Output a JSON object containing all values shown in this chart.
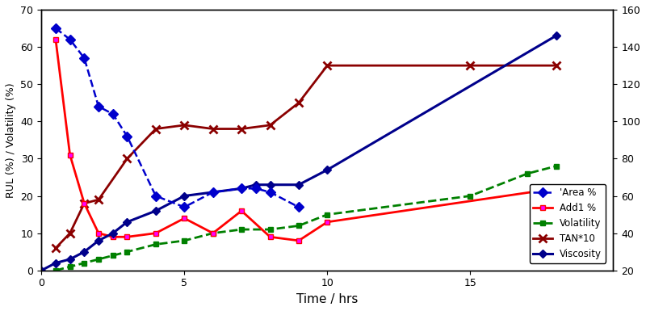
{
  "title": "",
  "xlabel": "Time / hrs",
  "ylabel_left": "RUL (%) / Volatility (%)",
  "ylabel_right": "",
  "xlim": [
    0,
    20
  ],
  "ylim_left": [
    0,
    70
  ],
  "ylim_right": [
    20,
    160
  ],
  "xticks": [
    0,
    5,
    10,
    15
  ],
  "yticks_left": [
    0,
    10,
    20,
    30,
    40,
    50,
    60,
    70
  ],
  "yticks_right": [
    20,
    40,
    60,
    80,
    100,
    120,
    140,
    160
  ],
  "area_x": [
    0.5,
    1,
    1.5,
    2,
    2.5,
    3,
    4,
    5,
    6,
    7,
    7.5,
    8,
    9
  ],
  "area_y": [
    65,
    62,
    57,
    44,
    42,
    36,
    20,
    17,
    21,
    22,
    22,
    21,
    17
  ],
  "add1_x": [
    0.5,
    1,
    1.5,
    2,
    2.5,
    3,
    4,
    5,
    6,
    7,
    8,
    9,
    10,
    18
  ],
  "add1_y": [
    62,
    31,
    18,
    10,
    9,
    9,
    10,
    14,
    10,
    16,
    9,
    8,
    13,
    22
  ],
  "volatility_x": [
    0.5,
    1,
    1.5,
    2,
    2.5,
    3,
    4,
    5,
    6,
    7,
    8,
    9,
    10,
    15,
    17,
    18
  ],
  "volatility_y": [
    0,
    1,
    2,
    3,
    4,
    5,
    7,
    8,
    10,
    11,
    11,
    12,
    15,
    20,
    26,
    28
  ],
  "tan_x": [
    0.5,
    1,
    1.5,
    2,
    3,
    4,
    5,
    6,
    7,
    8,
    9,
    10,
    15,
    18
  ],
  "tan_y": [
    6,
    10,
    18,
    19,
    30,
    38,
    39,
    38,
    38,
    39,
    45,
    55,
    55,
    55
  ],
  "viscosity_x": [
    0,
    0.5,
    1,
    1.5,
    2,
    2.5,
    3,
    4,
    5,
    6,
    7,
    7.5,
    8,
    9,
    10,
    18
  ],
  "viscosity_y": [
    0,
    2,
    3,
    5,
    8,
    10,
    13,
    16,
    20,
    21,
    22,
    23,
    23,
    23,
    27,
    63
  ],
  "area_color": "#0000cc",
  "add1_color": "#ff0000",
  "volatility_color": "#008000",
  "tan_color": "#8b0000",
  "viscosity_color": "#00008b",
  "add1_marker_color": "#ff00ff",
  "bg_color": "#ffffff"
}
